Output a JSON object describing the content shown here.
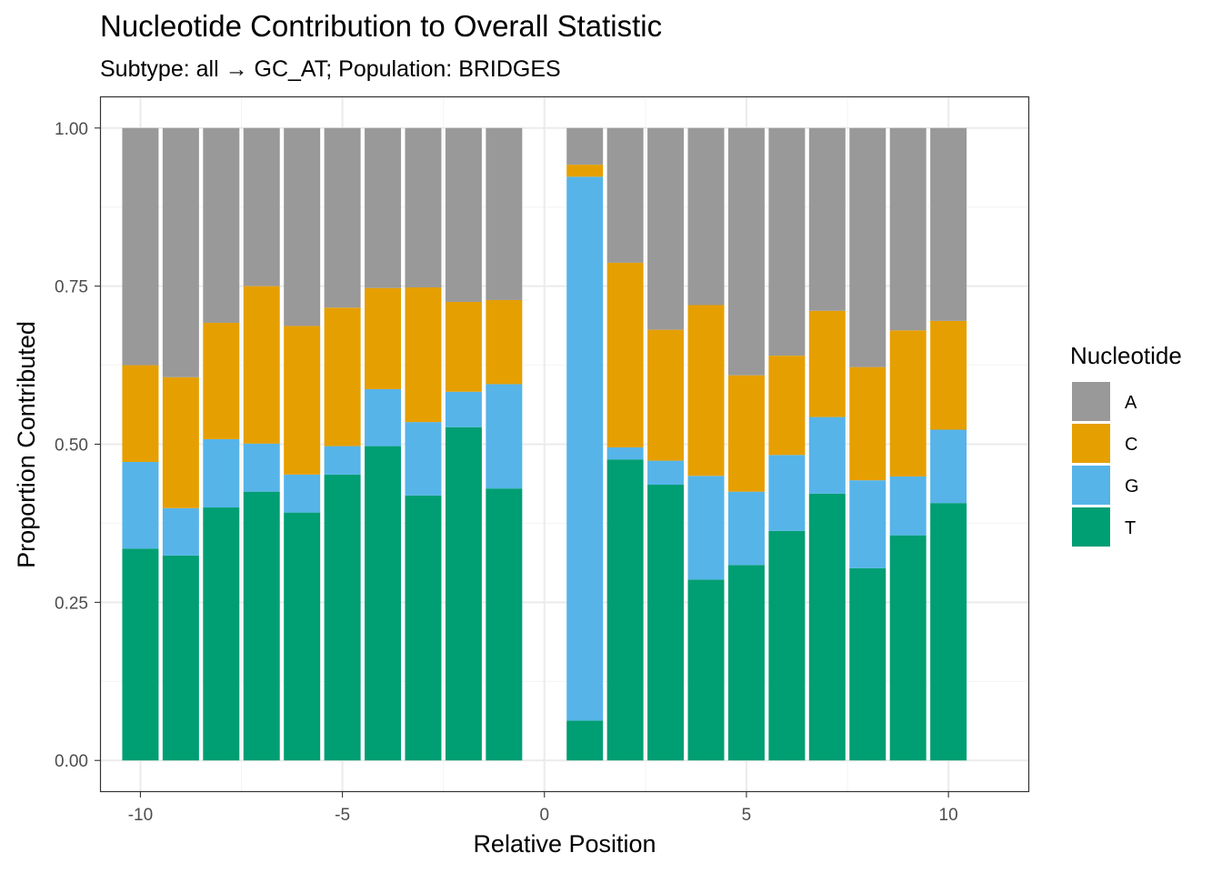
{
  "chart_data": {
    "type": "bar",
    "stacked": true,
    "title": "Nucleotide Contribution to Overall Statistic",
    "subtitle": "Subtype: all → GC_AT; Population: BRIDGES",
    "xlabel": "Relative Position",
    "ylabel": "Proportion Contributed",
    "xlim": [
      -11,
      12
    ],
    "ylim": [
      -0.05,
      1.05
    ],
    "x_ticks": [
      -10,
      -5,
      0,
      5,
      10
    ],
    "x_tick_labels": [
      "-10",
      "-5",
      "0",
      "5",
      "10"
    ],
    "y_ticks": [
      0,
      0.25,
      0.5,
      0.75,
      1.0
    ],
    "y_tick_labels": [
      "0.00",
      "0.25",
      "0.50",
      "0.75",
      "1.00"
    ],
    "grid": true,
    "legend": {
      "title": "Nucleotide",
      "position": "right"
    },
    "x": [
      -10,
      -9,
      -8,
      -7,
      -6,
      -5,
      -4,
      -3,
      -2,
      -1,
      1,
      2,
      3,
      4,
      5,
      6,
      7,
      8,
      9,
      10
    ],
    "series": [
      {
        "name": "T",
        "color": "#009E73",
        "values": [
          0.335,
          0.324,
          0.4,
          0.425,
          0.392,
          0.452,
          0.497,
          0.419,
          0.527,
          0.43,
          0.063,
          0.476,
          0.436,
          0.286,
          0.309,
          0.363,
          0.422,
          0.304,
          0.356,
          0.407
        ]
      },
      {
        "name": "G",
        "color": "#56B4E9",
        "values": [
          0.137,
          0.075,
          0.108,
          0.076,
          0.06,
          0.045,
          0.09,
          0.116,
          0.056,
          0.165,
          0.86,
          0.019,
          0.038,
          0.164,
          0.116,
          0.12,
          0.121,
          0.139,
          0.093,
          0.116
        ]
      },
      {
        "name": "C",
        "color": "#E69F00",
        "values": [
          0.153,
          0.207,
          0.184,
          0.249,
          0.235,
          0.219,
          0.16,
          0.213,
          0.142,
          0.133,
          0.019,
          0.292,
          0.207,
          0.27,
          0.184,
          0.157,
          0.168,
          0.179,
          0.231,
          0.172
        ]
      },
      {
        "name": "A",
        "color": "#999999",
        "values": [
          0.375,
          0.394,
          0.308,
          0.25,
          0.313,
          0.284,
          0.253,
          0.252,
          0.275,
          0.272,
          0.058,
          0.213,
          0.319,
          0.28,
          0.391,
          0.36,
          0.289,
          0.378,
          0.32,
          0.305
        ]
      }
    ],
    "legend_order": [
      "A",
      "C",
      "G",
      "T"
    ]
  },
  "colors": {
    "panel_border": "#333333",
    "grid_major": "#EBEBEB",
    "grid_minor": "#F5F5F5",
    "tick_text": "#4D4D4D"
  }
}
